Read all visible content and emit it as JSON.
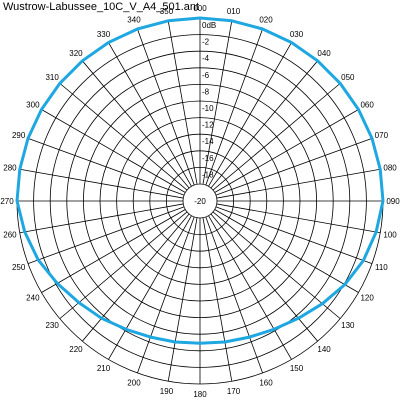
{
  "title": "Wustrow-Labussee_10C_V_A4_501.ant",
  "chart_data": {
    "type": "polar-line",
    "title": "Wustrow-Labussee_10C_V_A4_501.ant",
    "radial_axis": {
      "unit": "dB",
      "range": [
        -20,
        0
      ],
      "tick_labels": [
        "0dB",
        "-2",
        "-4",
        "-6",
        "-8",
        "-10",
        "-12",
        "-14",
        "-16",
        "-18",
        "-20"
      ],
      "tick_values": [
        0,
        -2,
        -4,
        -6,
        -8,
        -10,
        -12,
        -14,
        -16,
        -18,
        -20
      ]
    },
    "angular_axis": {
      "direction": "clockwise",
      "zero_at": "top",
      "tick_labels": [
        "000",
        "010",
        "020",
        "030",
        "040",
        "050",
        "060",
        "070",
        "080",
        "090",
        "100",
        "110",
        "120",
        "130",
        "140",
        "150",
        "160",
        "170",
        "180",
        "190",
        "200",
        "210",
        "220",
        "230",
        "240",
        "250",
        "260",
        "270",
        "280",
        "290",
        "300",
        "310",
        "320",
        "330",
        "340",
        "350"
      ],
      "tick_degrees": [
        0,
        10,
        20,
        30,
        40,
        50,
        60,
        70,
        80,
        90,
        100,
        110,
        120,
        130,
        140,
        150,
        160,
        170,
        180,
        190,
        200,
        210,
        220,
        230,
        240,
        250,
        260,
        270,
        280,
        290,
        300,
        310,
        320,
        330,
        340,
        350
      ]
    },
    "grid": true,
    "colors": {
      "series": "#1ea7e1",
      "grid": "#000000"
    },
    "series": [
      {
        "angles": [
          0,
          10,
          20,
          30,
          40,
          50,
          60,
          70,
          80,
          90,
          100,
          110,
          120,
          130,
          140,
          150,
          160,
          170,
          180,
          190,
          200,
          210,
          220,
          230,
          240,
          250,
          260,
          270,
          280,
          290,
          300,
          310,
          320,
          330,
          340,
          350
        ],
        "values": [
          0,
          0,
          0,
          0,
          0,
          0,
          0,
          0,
          0,
          0,
          -0.5,
          -1.1,
          -1.9,
          -2.8,
          -3.6,
          -4.2,
          -4.6,
          -4.8,
          -4.9,
          -4.8,
          -4.6,
          -4.2,
          -3.6,
          -3.0,
          -2.2,
          -1.3,
          -0.6,
          0,
          0,
          0,
          0,
          0,
          0,
          0,
          0,
          0
        ]
      }
    ]
  }
}
